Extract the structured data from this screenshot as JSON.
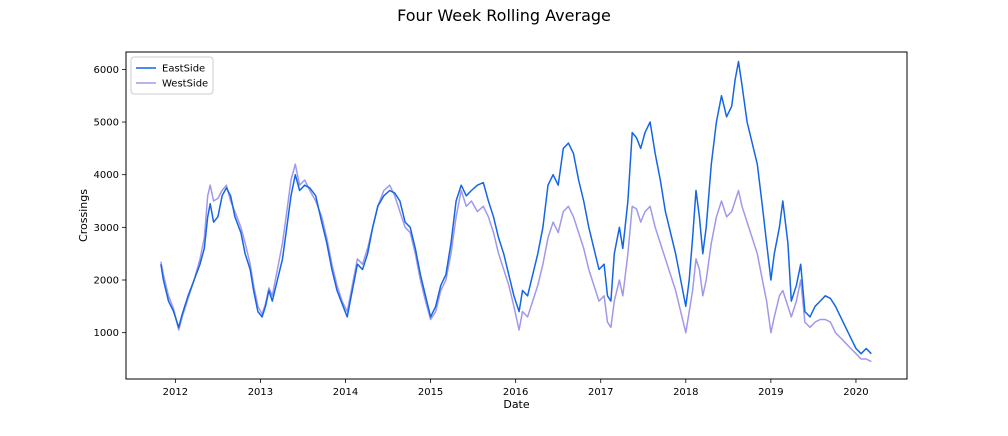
{
  "chart_data": {
    "type": "line",
    "title": "Four Week Rolling Average",
    "xlabel": "Date",
    "ylabel": "Crossings",
    "xlim": [
      2011.42,
      2020.6
    ],
    "ylim": [
      120,
      6330
    ],
    "x_ticks": [
      2012,
      2013,
      2014,
      2015,
      2016,
      2017,
      2018,
      2019,
      2020
    ],
    "y_ticks": [
      1000,
      2000,
      3000,
      4000,
      5000,
      6000
    ],
    "x_tick_labels": [
      "2012",
      "2013",
      "2014",
      "2015",
      "2016",
      "2017",
      "2018",
      "2019",
      "2020"
    ],
    "y_tick_labels": [
      "1000",
      "2000",
      "3000",
      "4000",
      "5000",
      "6000"
    ],
    "grid": false,
    "legend_position": "top-left",
    "series": [
      {
        "name": "EastSide",
        "color": "#1565e6",
        "points": [
          [
            2011.83,
            2300
          ],
          [
            2011.86,
            2000
          ],
          [
            2011.92,
            1600
          ],
          [
            2011.98,
            1400
          ],
          [
            2012.04,
            1100
          ],
          [
            2012.08,
            1350
          ],
          [
            2012.15,
            1700
          ],
          [
            2012.22,
            2000
          ],
          [
            2012.29,
            2300
          ],
          [
            2012.34,
            2600
          ],
          [
            2012.38,
            3200
          ],
          [
            2012.41,
            3450
          ],
          [
            2012.45,
            3100
          ],
          [
            2012.5,
            3200
          ],
          [
            2012.55,
            3600
          ],
          [
            2012.6,
            3750
          ],
          [
            2012.65,
            3600
          ],
          [
            2012.7,
            3200
          ],
          [
            2012.77,
            2900
          ],
          [
            2012.82,
            2500
          ],
          [
            2012.88,
            2200
          ],
          [
            2012.92,
            1800
          ],
          [
            2012.97,
            1400
          ],
          [
            2013.02,
            1300
          ],
          [
            2013.06,
            1500
          ],
          [
            2013.1,
            1800
          ],
          [
            2013.14,
            1600
          ],
          [
            2013.2,
            2000
          ],
          [
            2013.26,
            2400
          ],
          [
            2013.31,
            3000
          ],
          [
            2013.36,
            3600
          ],
          [
            2013.41,
            4000
          ],
          [
            2013.46,
            3700
          ],
          [
            2013.52,
            3800
          ],
          [
            2013.58,
            3750
          ],
          [
            2013.65,
            3600
          ],
          [
            2013.72,
            3100
          ],
          [
            2013.78,
            2700
          ],
          [
            2013.84,
            2200
          ],
          [
            2013.9,
            1800
          ],
          [
            2013.96,
            1550
          ],
          [
            2014.02,
            1300
          ],
          [
            2014.08,
            1800
          ],
          [
            2014.14,
            2300
          ],
          [
            2014.2,
            2200
          ],
          [
            2014.26,
            2500
          ],
          [
            2014.32,
            3000
          ],
          [
            2014.38,
            3400
          ],
          [
            2014.45,
            3600
          ],
          [
            2014.52,
            3700
          ],
          [
            2014.58,
            3650
          ],
          [
            2014.64,
            3500
          ],
          [
            2014.7,
            3100
          ],
          [
            2014.76,
            3000
          ],
          [
            2014.82,
            2600
          ],
          [
            2014.88,
            2100
          ],
          [
            2014.94,
            1700
          ],
          [
            2015.0,
            1300
          ],
          [
            2015.06,
            1500
          ],
          [
            2015.12,
            1900
          ],
          [
            2015.18,
            2100
          ],
          [
            2015.24,
            2700
          ],
          [
            2015.3,
            3500
          ],
          [
            2015.36,
            3800
          ],
          [
            2015.42,
            3600
          ],
          [
            2015.48,
            3700
          ],
          [
            2015.55,
            3800
          ],
          [
            2015.62,
            3850
          ],
          [
            2015.68,
            3500
          ],
          [
            2015.74,
            3200
          ],
          [
            2015.8,
            2800
          ],
          [
            2015.86,
            2500
          ],
          [
            2015.92,
            2100
          ],
          [
            2015.98,
            1700
          ],
          [
            2016.04,
            1400
          ],
          [
            2016.08,
            1800
          ],
          [
            2016.14,
            1700
          ],
          [
            2016.2,
            2100
          ],
          [
            2016.26,
            2500
          ],
          [
            2016.32,
            3000
          ],
          [
            2016.38,
            3800
          ],
          [
            2016.44,
            4000
          ],
          [
            2016.5,
            3800
          ],
          [
            2016.56,
            4500
          ],
          [
            2016.62,
            4600
          ],
          [
            2016.68,
            4400
          ],
          [
            2016.74,
            3900
          ],
          [
            2016.8,
            3500
          ],
          [
            2016.86,
            3000
          ],
          [
            2016.92,
            2600
          ],
          [
            2016.98,
            2200
          ],
          [
            2017.04,
            2300
          ],
          [
            2017.08,
            1700
          ],
          [
            2017.12,
            1600
          ],
          [
            2017.16,
            2500
          ],
          [
            2017.22,
            3000
          ],
          [
            2017.26,
            2600
          ],
          [
            2017.32,
            3500
          ],
          [
            2017.37,
            4800
          ],
          [
            2017.42,
            4700
          ],
          [
            2017.47,
            4500
          ],
          [
            2017.52,
            4800
          ],
          [
            2017.58,
            5000
          ],
          [
            2017.64,
            4400
          ],
          [
            2017.7,
            3900
          ],
          [
            2017.76,
            3300
          ],
          [
            2017.82,
            2900
          ],
          [
            2017.88,
            2500
          ],
          [
            2017.94,
            2000
          ],
          [
            2018.0,
            1500
          ],
          [
            2018.04,
            2000
          ],
          [
            2018.08,
            2800
          ],
          [
            2018.12,
            3700
          ],
          [
            2018.16,
            3200
          ],
          [
            2018.2,
            2500
          ],
          [
            2018.24,
            3000
          ],
          [
            2018.3,
            4200
          ],
          [
            2018.36,
            5000
          ],
          [
            2018.42,
            5500
          ],
          [
            2018.48,
            5100
          ],
          [
            2018.54,
            5300
          ],
          [
            2018.58,
            5800
          ],
          [
            2018.62,
            6150
          ],
          [
            2018.66,
            5700
          ],
          [
            2018.72,
            5000
          ],
          [
            2018.78,
            4600
          ],
          [
            2018.84,
            4200
          ],
          [
            2018.9,
            3400
          ],
          [
            2018.95,
            2700
          ],
          [
            2019.0,
            2000
          ],
          [
            2019.04,
            2500
          ],
          [
            2019.1,
            3000
          ],
          [
            2019.14,
            3500
          ],
          [
            2019.2,
            2700
          ],
          [
            2019.24,
            1600
          ],
          [
            2019.3,
            1900
          ],
          [
            2019.35,
            2300
          ],
          [
            2019.4,
            1400
          ],
          [
            2019.46,
            1300
          ],
          [
            2019.52,
            1500
          ],
          [
            2019.58,
            1600
          ],
          [
            2019.64,
            1700
          ],
          [
            2019.7,
            1650
          ],
          [
            2019.76,
            1500
          ],
          [
            2019.82,
            1300
          ],
          [
            2019.88,
            1100
          ],
          [
            2019.94,
            900
          ],
          [
            2020.0,
            700
          ],
          [
            2020.06,
            600
          ],
          [
            2020.12,
            700
          ],
          [
            2020.18,
            600
          ]
        ]
      },
      {
        "name": "WestSide",
        "color": "#a098ec",
        "points": [
          [
            2011.83,
            2350
          ],
          [
            2011.86,
            2100
          ],
          [
            2011.92,
            1700
          ],
          [
            2011.98,
            1450
          ],
          [
            2012.04,
            1050
          ],
          [
            2012.08,
            1300
          ],
          [
            2012.15,
            1650
          ],
          [
            2012.22,
            2000
          ],
          [
            2012.29,
            2400
          ],
          [
            2012.34,
            2800
          ],
          [
            2012.38,
            3600
          ],
          [
            2012.41,
            3800
          ],
          [
            2012.45,
            3500
          ],
          [
            2012.5,
            3550
          ],
          [
            2012.55,
            3700
          ],
          [
            2012.6,
            3800
          ],
          [
            2012.65,
            3500
          ],
          [
            2012.7,
            3300
          ],
          [
            2012.77,
            3000
          ],
          [
            2012.82,
            2700
          ],
          [
            2012.88,
            2300
          ],
          [
            2012.92,
            1900
          ],
          [
            2012.97,
            1500
          ],
          [
            2013.02,
            1350
          ],
          [
            2013.06,
            1550
          ],
          [
            2013.1,
            1850
          ],
          [
            2013.14,
            1700
          ],
          [
            2013.2,
            2200
          ],
          [
            2013.26,
            2700
          ],
          [
            2013.31,
            3300
          ],
          [
            2013.36,
            3900
          ],
          [
            2013.41,
            4200
          ],
          [
            2013.46,
            3800
          ],
          [
            2013.52,
            3900
          ],
          [
            2013.58,
            3700
          ],
          [
            2013.65,
            3500
          ],
          [
            2013.72,
            3200
          ],
          [
            2013.78,
            2800
          ],
          [
            2013.84,
            2300
          ],
          [
            2013.9,
            1900
          ],
          [
            2013.96,
            1600
          ],
          [
            2014.02,
            1400
          ],
          [
            2014.08,
            1900
          ],
          [
            2014.14,
            2400
          ],
          [
            2014.2,
            2300
          ],
          [
            2014.26,
            2600
          ],
          [
            2014.32,
            3000
          ],
          [
            2014.38,
            3400
          ],
          [
            2014.45,
            3700
          ],
          [
            2014.52,
            3800
          ],
          [
            2014.58,
            3600
          ],
          [
            2014.64,
            3300
          ],
          [
            2014.7,
            3000
          ],
          [
            2014.76,
            2900
          ],
          [
            2014.82,
            2500
          ],
          [
            2014.88,
            2000
          ],
          [
            2014.94,
            1600
          ],
          [
            2015.0,
            1250
          ],
          [
            2015.06,
            1400
          ],
          [
            2015.12,
            1800
          ],
          [
            2015.18,
            2000
          ],
          [
            2015.24,
            2500
          ],
          [
            2015.3,
            3200
          ],
          [
            2015.36,
            3700
          ],
          [
            2015.42,
            3400
          ],
          [
            2015.48,
            3500
          ],
          [
            2015.55,
            3300
          ],
          [
            2015.62,
            3400
          ],
          [
            2015.68,
            3200
          ],
          [
            2015.74,
            2900
          ],
          [
            2015.8,
            2500
          ],
          [
            2015.86,
            2200
          ],
          [
            2015.92,
            1900
          ],
          [
            2015.98,
            1500
          ],
          [
            2016.04,
            1050
          ],
          [
            2016.08,
            1400
          ],
          [
            2016.14,
            1300
          ],
          [
            2016.2,
            1600
          ],
          [
            2016.26,
            1900
          ],
          [
            2016.32,
            2300
          ],
          [
            2016.38,
            2800
          ],
          [
            2016.44,
            3100
          ],
          [
            2016.5,
            2900
          ],
          [
            2016.56,
            3300
          ],
          [
            2016.62,
            3400
          ],
          [
            2016.68,
            3200
          ],
          [
            2016.74,
            2900
          ],
          [
            2016.8,
            2600
          ],
          [
            2016.86,
            2200
          ],
          [
            2016.92,
            1900
          ],
          [
            2016.98,
            1600
          ],
          [
            2017.04,
            1700
          ],
          [
            2017.08,
            1200
          ],
          [
            2017.12,
            1100
          ],
          [
            2017.16,
            1600
          ],
          [
            2017.22,
            2000
          ],
          [
            2017.26,
            1700
          ],
          [
            2017.32,
            2500
          ],
          [
            2017.37,
            3400
          ],
          [
            2017.42,
            3350
          ],
          [
            2017.47,
            3100
          ],
          [
            2017.52,
            3300
          ],
          [
            2017.58,
            3400
          ],
          [
            2017.64,
            3000
          ],
          [
            2017.7,
            2700
          ],
          [
            2017.76,
            2400
          ],
          [
            2017.82,
            2100
          ],
          [
            2017.88,
            1800
          ],
          [
            2017.94,
            1400
          ],
          [
            2018.0,
            1000
          ],
          [
            2018.04,
            1400
          ],
          [
            2018.08,
            1800
          ],
          [
            2018.12,
            2400
          ],
          [
            2018.16,
            2200
          ],
          [
            2018.2,
            1700
          ],
          [
            2018.24,
            2000
          ],
          [
            2018.3,
            2700
          ],
          [
            2018.36,
            3200
          ],
          [
            2018.42,
            3500
          ],
          [
            2018.48,
            3200
          ],
          [
            2018.54,
            3300
          ],
          [
            2018.58,
            3500
          ],
          [
            2018.62,
            3700
          ],
          [
            2018.66,
            3400
          ],
          [
            2018.72,
            3100
          ],
          [
            2018.78,
            2800
          ],
          [
            2018.84,
            2500
          ],
          [
            2018.9,
            2000
          ],
          [
            2018.95,
            1600
          ],
          [
            2019.0,
            1000
          ],
          [
            2019.04,
            1300
          ],
          [
            2019.1,
            1700
          ],
          [
            2019.14,
            1800
          ],
          [
            2019.2,
            1500
          ],
          [
            2019.24,
            1300
          ],
          [
            2019.3,
            1600
          ],
          [
            2019.35,
            2000
          ],
          [
            2019.4,
            1200
          ],
          [
            2019.46,
            1100
          ],
          [
            2019.52,
            1200
          ],
          [
            2019.58,
            1250
          ],
          [
            2019.64,
            1250
          ],
          [
            2019.7,
            1200
          ],
          [
            2019.76,
            1000
          ],
          [
            2019.82,
            900
          ],
          [
            2019.88,
            800
          ],
          [
            2019.94,
            700
          ],
          [
            2020.0,
            600
          ],
          [
            2020.06,
            500
          ],
          [
            2020.12,
            500
          ],
          [
            2020.18,
            450
          ]
        ]
      }
    ]
  }
}
